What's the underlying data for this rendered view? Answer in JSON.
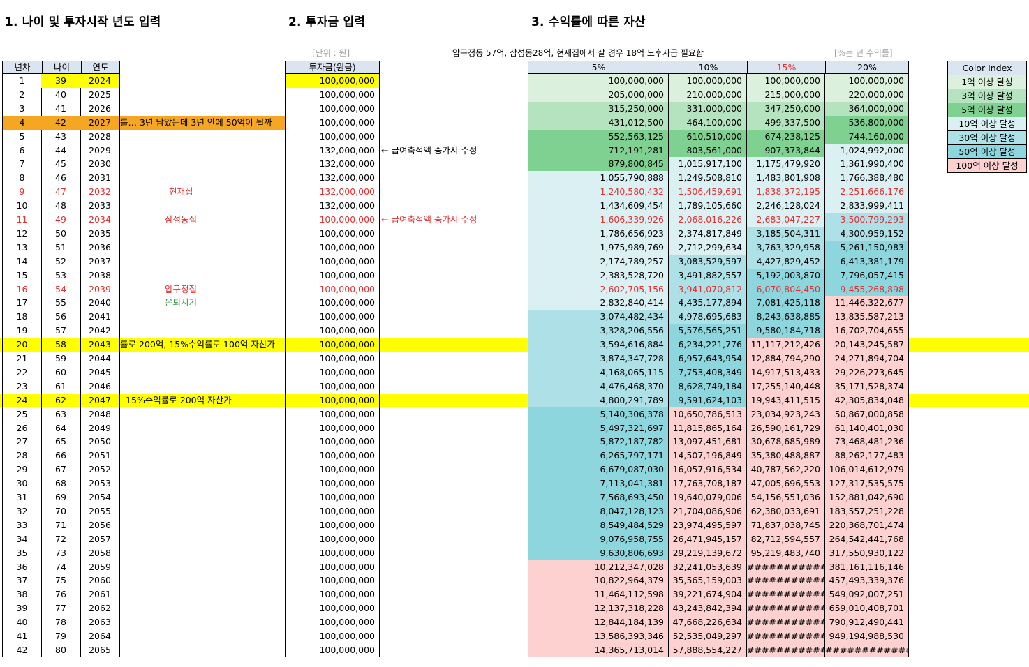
{
  "sections": {
    "s1": "1. 나이 및 투자시작 년도 입력",
    "s2": "2. 투자금 입력",
    "s3": "3. 수익률에 따른 자산"
  },
  "notes": {
    "unit": "[단위 : 원]",
    "requirement": "압구정동 57억, 삼성동28억, 현재집에서 살 경우 18억 노후자금 필요함",
    "rate": "[%는 년 수익률]"
  },
  "headers": {
    "year_no": "년차",
    "age": "나이",
    "year": "연도",
    "invest": "투자금(원금)",
    "r5": "5%",
    "r10": "10%",
    "r15": "15%",
    "r20": "20%"
  },
  "legend": {
    "title": "Color Index",
    "items": [
      "1억 이상 달성",
      "3억 이상 달성",
      "5억 이상 달성",
      "10억 이상 달성",
      "30억 이상 달성",
      "50억 이상 달성",
      "100억 이상 달성"
    ]
  },
  "rows": [
    [
      "1",
      "39",
      "2024",
      "100,000,000",
      "100,000,000",
      "100,000,000",
      "100,000,000",
      "100,000,000"
    ],
    [
      "2",
      "40",
      "2025",
      "100,000,000",
      "205,000,000",
      "210,000,000",
      "215,000,000",
      "220,000,000"
    ],
    [
      "3",
      "41",
      "2026",
      "100,000,000",
      "315,250,000",
      "331,000,000",
      "347,250,000",
      "364,000,000"
    ],
    [
      "4",
      "42",
      "2027",
      "100,000,000",
      "431,012,500",
      "464,100,000",
      "499,337,500",
      "536,800,000"
    ],
    [
      "5",
      "43",
      "2028",
      "100,000,000",
      "552,563,125",
      "610,510,000",
      "674,238,125",
      "744,160,000"
    ],
    [
      "6",
      "44",
      "2029",
      "132,000,000",
      "712,191,281",
      "803,561,000",
      "907,373,844",
      "1,024,992,000"
    ],
    [
      "7",
      "45",
      "2030",
      "132,000,000",
      "879,800,845",
      "1,015,917,100",
      "1,175,479,920",
      "1,361,990,400"
    ],
    [
      "8",
      "46",
      "2031",
      "132,000,000",
      "1,055,790,888",
      "1,249,508,810",
      "1,483,801,908",
      "1,766,388,480"
    ],
    [
      "9",
      "47",
      "2032",
      "132,000,000",
      "1,240,580,432",
      "1,506,459,691",
      "1,838,372,195",
      "2,251,666,176"
    ],
    [
      "10",
      "48",
      "2033",
      "132,000,000",
      "1,434,609,454",
      "1,789,105,660",
      "2,246,128,024",
      "2,833,999,411"
    ],
    [
      "11",
      "49",
      "2034",
      "100,000,000",
      "1,606,339,926",
      "2,068,016,226",
      "2,683,047,227",
      "3,500,799,293"
    ],
    [
      "12",
      "50",
      "2035",
      "100,000,000",
      "1,786,656,923",
      "2,374,817,849",
      "3,185,504,311",
      "4,300,959,152"
    ],
    [
      "13",
      "51",
      "2036",
      "100,000,000",
      "1,975,989,769",
      "2,712,299,634",
      "3,763,329,958",
      "5,261,150,983"
    ],
    [
      "14",
      "52",
      "2037",
      "100,000,000",
      "2,174,789,257",
      "3,083,529,597",
      "4,427,829,452",
      "6,413,381,179"
    ],
    [
      "15",
      "53",
      "2038",
      "100,000,000",
      "2,383,528,720",
      "3,491,882,557",
      "5,192,003,870",
      "7,796,057,415"
    ],
    [
      "16",
      "54",
      "2039",
      "100,000,000",
      "2,602,705,156",
      "3,941,070,812",
      "6,070,804,450",
      "9,455,268,898"
    ],
    [
      "17",
      "55",
      "2040",
      "100,000,000",
      "2,832,840,414",
      "4,435,177,894",
      "7,081,425,118",
      "11,446,322,677"
    ],
    [
      "18",
      "56",
      "2041",
      "100,000,000",
      "3,074,482,434",
      "4,978,695,683",
      "8,243,638,885",
      "13,835,587,213"
    ],
    [
      "19",
      "57",
      "2042",
      "100,000,000",
      "3,328,206,556",
      "5,576,565,251",
      "9,580,184,718",
      "16,702,704,655"
    ],
    [
      "20",
      "58",
      "2043",
      "100,000,000",
      "3,594,616,884",
      "6,234,221,776",
      "11,117,212,426",
      "20,143,245,587"
    ],
    [
      "21",
      "59",
      "2044",
      "100,000,000",
      "3,874,347,728",
      "6,957,643,954",
      "12,884,794,290",
      "24,271,894,704"
    ],
    [
      "22",
      "60",
      "2045",
      "100,000,000",
      "4,168,065,115",
      "7,753,408,349",
      "14,917,513,433",
      "29,226,273,645"
    ],
    [
      "23",
      "61",
      "2046",
      "100,000,000",
      "4,476,468,370",
      "8,628,749,184",
      "17,255,140,448",
      "35,171,528,374"
    ],
    [
      "24",
      "62",
      "2047",
      "100,000,000",
      "4,800,291,789",
      "9,591,624,103",
      "19,943,411,515",
      "42,305,834,048"
    ],
    [
      "25",
      "63",
      "2048",
      "100,000,000",
      "5,140,306,378",
      "10,650,786,513",
      "23,034,923,243",
      "50,867,000,858"
    ],
    [
      "26",
      "64",
      "2049",
      "100,000,000",
      "5,497,321,697",
      "11,815,865,164",
      "26,590,161,729",
      "61,140,401,030"
    ],
    [
      "27",
      "65",
      "2050",
      "100,000,000",
      "5,872,187,782",
      "13,097,451,681",
      "30,678,685,989",
      "73,468,481,236"
    ],
    [
      "28",
      "66",
      "2051",
      "100,000,000",
      "6,265,797,171",
      "14,507,196,849",
      "35,380,488,887",
      "88,262,177,483"
    ],
    [
      "29",
      "67",
      "2052",
      "100,000,000",
      "6,679,087,030",
      "16,057,916,534",
      "40,787,562,220",
      "106,014,612,979"
    ],
    [
      "30",
      "68",
      "2053",
      "100,000,000",
      "7,113,041,381",
      "17,763,708,187",
      "47,005,696,553",
      "127,317,535,575"
    ],
    [
      "31",
      "69",
      "2054",
      "100,000,000",
      "7,568,693,450",
      "19,640,079,006",
      "54,156,551,036",
      "152,881,042,690"
    ],
    [
      "32",
      "70",
      "2055",
      "100,000,000",
      "8,047,128,123",
      "21,704,086,906",
      "62,380,033,691",
      "183,557,251,228"
    ],
    [
      "33",
      "71",
      "2056",
      "100,000,000",
      "8,549,484,529",
      "23,974,495,597",
      "71,837,038,745",
      "220,368,701,474"
    ],
    [
      "34",
      "72",
      "2057",
      "100,000,000",
      "9,076,958,755",
      "26,471,945,157",
      "82,712,594,557",
      "264,542,441,768"
    ],
    [
      "35",
      "73",
      "2058",
      "100,000,000",
      "9,630,806,693",
      "29,219,139,672",
      "95,219,483,740",
      "317,550,930,122"
    ],
    [
      "36",
      "74",
      "2059",
      "100,000,000",
      "10,212,347,028",
      "32,241,053,639",
      "#############",
      "381,161,116,146"
    ],
    [
      "37",
      "75",
      "2060",
      "100,000,000",
      "10,822,964,379",
      "35,565,159,003",
      "#############",
      "457,493,339,376"
    ],
    [
      "38",
      "76",
      "2061",
      "100,000,000",
      "11,464,112,598",
      "39,221,674,904",
      "#############",
      "549,092,007,251"
    ],
    [
      "39",
      "77",
      "2062",
      "100,000,000",
      "12,137,318,228",
      "43,243,842,394",
      "#############",
      "659,010,408,701"
    ],
    [
      "40",
      "78",
      "2063",
      "100,000,000",
      "12,844,184,139",
      "47,668,226,634",
      "#############",
      "790,912,490,441"
    ],
    [
      "41",
      "79",
      "2064",
      "100,000,000",
      "13,586,393,346",
      "52,535,049,297",
      "#############",
      "949,194,988,530"
    ],
    [
      "42",
      "80",
      "2065",
      "100,000,000",
      "14,365,713,014",
      "57,888,554,227",
      "#############",
      "##############"
    ]
  ],
  "annotations": {
    "row4": "를… 3년 남았는데 3년 안에 50억이 될까",
    "row6": "← 급여축적액 증가시 수정",
    "row9": "현재집",
    "row11_place": "삼성동집",
    "row11_note": "← 급여축적액 증가시 수정",
    "row16": "압구정집",
    "row17": "은퇴시기",
    "row20": "률로 200억, 15%수익률로 100억 자산가",
    "row24": "15%수익률로 200억 자산가"
  },
  "colors": {
    "c1": "#dcf0de",
    "c3": "#b5e2bf",
    "c5": "#7fd191",
    "c10": "#daf0f3",
    "c30": "#ade0e7",
    "c50": "#8dd6de",
    "c100": "#fcd1cf",
    "header": "#dbe5f1",
    "highlight": "#ffff00",
    "orange": "#f5a623"
  }
}
